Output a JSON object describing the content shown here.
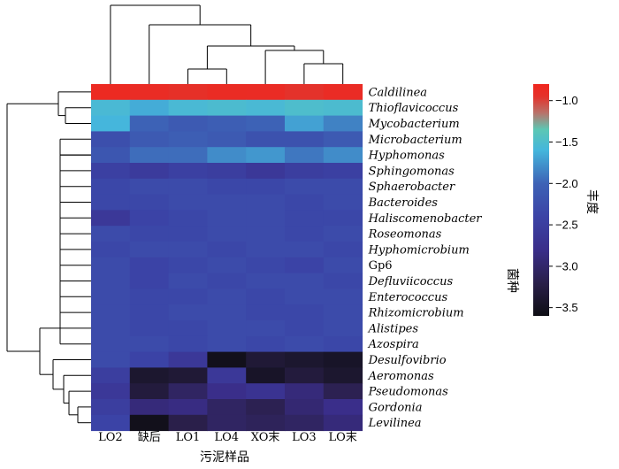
{
  "chart_data": {
    "type": "heatmap",
    "xlabel": "污泥样品",
    "ylabel": "菌种",
    "colorbar_label": "丰度",
    "columns": [
      "LO2",
      "缺后",
      "LO1",
      "LO4",
      "XO末",
      "LO3",
      "LO末"
    ],
    "rows": [
      "Caldilinea",
      "Thioflavicoccus",
      "Mycobacterium",
      "Microbacterium",
      "Hyphomonas",
      "Sphingomonas",
      "Sphaerobacter",
      "Bacteroides",
      "Haliscomenobacter",
      "Roseomonas",
      "Hyphomicrobium",
      "Gp6",
      "Defluviicoccus",
      "Enterococcus",
      "Rhizomicrobium",
      "Alistipes",
      "Azospira",
      "Desulfovibrio",
      "Aeromonas",
      "Pseudomonas",
      "Gordonia",
      "Levilinea"
    ],
    "row_italic": [
      true,
      true,
      true,
      true,
      true,
      true,
      true,
      true,
      true,
      true,
      true,
      false,
      true,
      true,
      true,
      true,
      true,
      true,
      true,
      true,
      true,
      true
    ],
    "values": [
      [
        -0.85,
        -0.88,
        -0.92,
        -0.87,
        -0.88,
        -0.95,
        -0.88
      ],
      [
        -1.55,
        -1.65,
        -1.55,
        -1.52,
        -1.55,
        -1.5,
        -1.52
      ],
      [
        -1.6,
        -2.0,
        -2.1,
        -2.05,
        -2.0,
        -1.7,
        -1.85
      ],
      [
        -2.25,
        -2.1,
        -2.05,
        -2.1,
        -2.2,
        -2.2,
        -2.1
      ],
      [
        -2.15,
        -1.95,
        -1.95,
        -1.8,
        -1.75,
        -1.9,
        -1.8
      ],
      [
        -2.45,
        -2.55,
        -2.45,
        -2.5,
        -2.6,
        -2.5,
        -2.45
      ],
      [
        -2.35,
        -2.3,
        -2.3,
        -2.35,
        -2.35,
        -2.3,
        -2.3
      ],
      [
        -2.35,
        -2.35,
        -2.3,
        -2.3,
        -2.3,
        -2.35,
        -2.3
      ],
      [
        -2.6,
        -2.4,
        -2.35,
        -2.3,
        -2.3,
        -2.35,
        -2.35
      ],
      [
        -2.3,
        -2.35,
        -2.35,
        -2.3,
        -2.3,
        -2.35,
        -2.3
      ],
      [
        -2.35,
        -2.3,
        -2.3,
        -2.35,
        -2.3,
        -2.3,
        -2.35
      ],
      [
        -2.3,
        -2.4,
        -2.35,
        -2.3,
        -2.35,
        -2.4,
        -2.3
      ],
      [
        -2.3,
        -2.4,
        -2.3,
        -2.35,
        -2.3,
        -2.3,
        -2.35
      ],
      [
        -2.3,
        -2.35,
        -2.35,
        -2.3,
        -2.35,
        -2.3,
        -2.3
      ],
      [
        -2.3,
        -2.35,
        -2.3,
        -2.3,
        -2.35,
        -2.35,
        -2.3
      ],
      [
        -2.3,
        -2.35,
        -2.35,
        -2.3,
        -2.3,
        -2.35,
        -2.3
      ],
      [
        -2.3,
        -2.3,
        -2.35,
        -2.3,
        -2.35,
        -2.3,
        -2.35
      ],
      [
        -2.3,
        -2.4,
        -2.6,
        -3.55,
        -3.35,
        -3.4,
        -3.45
      ],
      [
        -2.5,
        -3.4,
        -3.35,
        -2.6,
        -3.45,
        -3.3,
        -3.4
      ],
      [
        -2.6,
        -3.3,
        -3.05,
        -2.8,
        -2.7,
        -2.9,
        -3.15
      ],
      [
        -2.5,
        -2.9,
        -2.85,
        -3.05,
        -3.15,
        -2.95,
        -2.8
      ],
      [
        -2.4,
        -3.55,
        -3.2,
        -3.05,
        -3.1,
        -3.05,
        -2.9
      ]
    ],
    "colorbar": {
      "min": -3.6,
      "max": -0.8,
      "ticks": [
        -1.0,
        -1.5,
        -2.0,
        -2.5,
        -3.0,
        -3.5
      ],
      "tick_labels": [
        "−1.0",
        "−1.5",
        "−2.0",
        "−2.5",
        "−3.0",
        "−3.5"
      ]
    },
    "colormap": [
      {
        "v": -3.6,
        "color": "#0e0e14"
      },
      {
        "v": -3.2,
        "color": "#2a1f4a"
      },
      {
        "v": -2.8,
        "color": "#3a2e8a"
      },
      {
        "v": -2.4,
        "color": "#3b43a6"
      },
      {
        "v": -2.0,
        "color": "#3d62b6"
      },
      {
        "v": -1.6,
        "color": "#45b6dc"
      },
      {
        "v": -1.35,
        "color": "#5cc7b4"
      },
      {
        "v": -1.15,
        "color": "#b8736a"
      },
      {
        "v": -0.95,
        "color": "#e4322b"
      },
      {
        "v": -0.8,
        "color": "#f0261e"
      }
    ]
  }
}
